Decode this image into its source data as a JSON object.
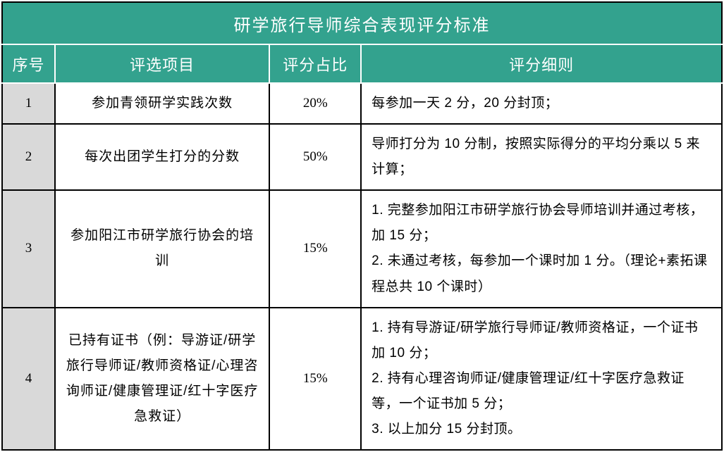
{
  "table": {
    "title": "研学旅行导师综合表现评分标准",
    "headers": {
      "seq": "序号",
      "item": "评选项目",
      "weight": "评分占比",
      "detail": "评分细则"
    },
    "rows": [
      {
        "seq": "1",
        "item": "参加青领研学实践次数",
        "weight": "20%",
        "detail_lines": [
          "每参加一天 2 分，20 分封顶；"
        ]
      },
      {
        "seq": "2",
        "item": "每次出团学生打分的分数",
        "weight": "50%",
        "detail_lines": [
          "导师打分为 10 分制，按照实际得分的平均分乘以 5 来计算；"
        ]
      },
      {
        "seq": "3",
        "item": "参加阳江市研学旅行协会的培训",
        "weight": "15%",
        "detail_lines": [
          "1. 完整参加阳江市研学旅行协会导师培训并通过考核，加 15 分；",
          "2. 未通过考核，每参加一个课时加 1 分。（理论+素拓课程总共 10 个课时）"
        ]
      },
      {
        "seq": "4",
        "item": "已持有证书（例：导游证/研学旅行导师证/教师资格证/心理咨询师证/健康管理证/红十字医疗急救证）",
        "weight": "15%",
        "detail_lines": [
          "1. 持有导游证/研学旅行导师证/教师资格证，一个证书加 10 分；",
          "2. 持有心理咨询师证/健康管理证/红十字医疗急救证等，一个证书加 5 分；",
          "3. 以上加分 15 分封顶。"
        ]
      }
    ],
    "colors": {
      "header_bg": "#33a28e",
      "header_fg": "#ffffff",
      "seq_bg": "#d9d9d9",
      "border": "#000000",
      "text": "#000000"
    }
  }
}
